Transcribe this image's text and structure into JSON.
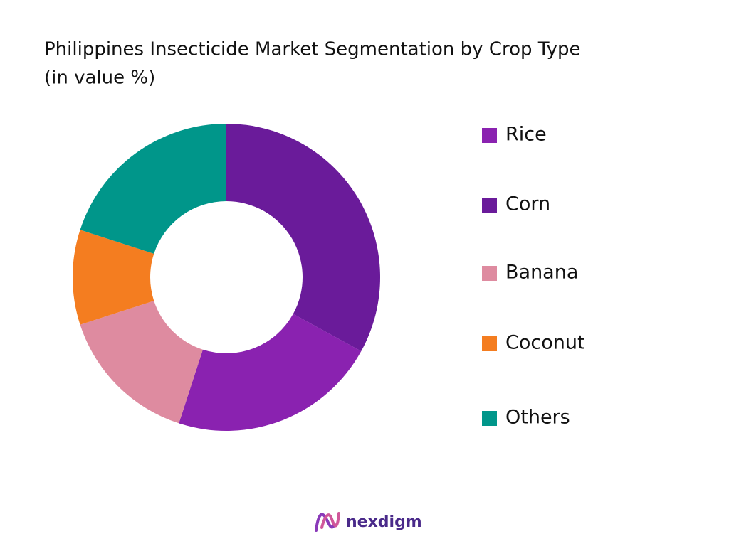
{
  "chart_data": {
    "type": "donut",
    "title": "Philippines Insecticide Market Segmentation by Crop Type",
    "subtitle": "(in value %)",
    "categories": [
      "Rice",
      "Corn",
      "Banana",
      "Coconut",
      "Others"
    ],
    "values": [
      22,
      33,
      15,
      10,
      20
    ],
    "colors": [
      "#8a22b0",
      "#6a1b9a",
      "#de8ba0",
      "#f47d20",
      "#00968a"
    ],
    "legend": "right"
  },
  "logo": "nexdigm"
}
